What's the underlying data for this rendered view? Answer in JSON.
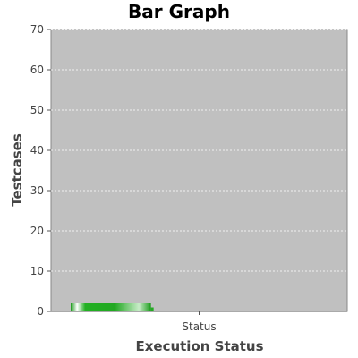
{
  "chart_data": {
    "type": "bar",
    "title": "Bar Graph",
    "xlabel": "Execution Status",
    "ylabel": "Testcases",
    "categories": [
      "Status"
    ],
    "series": [
      {
        "values": [
          2
        ],
        "color": "#22aa22"
      },
      {
        "values": [
          0
        ],
        "color": "#1133cc"
      },
      {
        "values": [
          0
        ],
        "color": "#cc2222"
      }
    ],
    "ylim": [
      0,
      70
    ],
    "yticks": [
      0,
      10,
      20,
      30,
      40,
      50,
      60,
      70
    ],
    "grid": true,
    "legend": "none",
    "plot_background": "#c0c0c0",
    "grid_color": "#ffffff"
  }
}
